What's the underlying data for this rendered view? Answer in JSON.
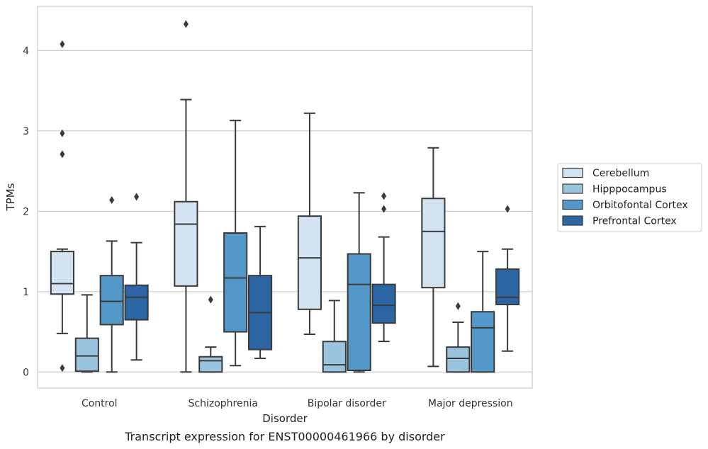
{
  "chart_data": {
    "type": "box",
    "xlabel": "Disorder",
    "ylabel": "TPMs",
    "caption": "Transcript expression for ENST00000461966 by disorder",
    "ylim": [
      -0.2,
      4.55
    ],
    "yticks": [
      0,
      1,
      2,
      3,
      4
    ],
    "grid": "horizontal",
    "legend_position": "right",
    "categories": [
      "Control",
      "Schizophrenia",
      "Bipolar disorder",
      "Major depression"
    ],
    "series": [
      {
        "name": "Cerebellum",
        "color": "#d3e3f2",
        "boxes": [
          {
            "whisker_low": 0.48,
            "q1": 0.97,
            "median": 1.1,
            "q3": 1.5,
            "whisker_high": 1.53,
            "outliers": [
              0.05,
              2.71,
              2.97,
              4.08
            ]
          },
          {
            "whisker_low": 0.0,
            "q1": 1.07,
            "median": 1.84,
            "q3": 2.12,
            "whisker_high": 3.39,
            "outliers": [
              4.33
            ]
          },
          {
            "whisker_low": 0.47,
            "q1": 0.78,
            "median": 1.42,
            "q3": 1.94,
            "whisker_high": 3.22,
            "outliers": []
          },
          {
            "whisker_low": 0.07,
            "q1": 1.05,
            "median": 1.75,
            "q3": 2.16,
            "whisker_high": 2.79,
            "outliers": []
          }
        ]
      },
      {
        "name": "Hipppocampus",
        "color": "#9ac3de",
        "boxes": [
          {
            "whisker_low": 0.0,
            "q1": 0.01,
            "median": 0.2,
            "q3": 0.42,
            "whisker_high": 0.96,
            "outliers": []
          },
          {
            "whisker_low": 0.0,
            "q1": 0.0,
            "median": 0.14,
            "q3": 0.19,
            "whisker_high": 0.31,
            "outliers": [
              0.9
            ]
          },
          {
            "whisker_low": 0.0,
            "q1": 0.0,
            "median": 0.09,
            "q3": 0.38,
            "whisker_high": 0.89,
            "outliers": []
          },
          {
            "whisker_low": 0.0,
            "q1": 0.0,
            "median": 0.17,
            "q3": 0.31,
            "whisker_high": 0.62,
            "outliers": [
              0.82
            ]
          }
        ]
      },
      {
        "name": "Orbitofontal Cortex",
        "color": "#5498c9",
        "boxes": [
          {
            "whisker_low": 0.0,
            "q1": 0.59,
            "median": 0.88,
            "q3": 1.2,
            "whisker_high": 1.63,
            "outliers": [
              2.14
            ]
          },
          {
            "whisker_low": 0.08,
            "q1": 0.5,
            "median": 1.17,
            "q3": 1.73,
            "whisker_high": 3.13,
            "outliers": []
          },
          {
            "whisker_low": 0.0,
            "q1": 0.02,
            "median": 1.09,
            "q3": 1.47,
            "whisker_high": 2.23,
            "outliers": []
          },
          {
            "whisker_low": 0.0,
            "q1": 0.0,
            "median": 0.55,
            "q3": 0.75,
            "whisker_high": 1.5,
            "outliers": []
          }
        ]
      },
      {
        "name": "Prefrontal Cortex",
        "color": "#2b65a4",
        "boxes": [
          {
            "whisker_low": 0.15,
            "q1": 0.65,
            "median": 0.93,
            "q3": 1.08,
            "whisker_high": 1.61,
            "outliers": [
              2.18
            ]
          },
          {
            "whisker_low": 0.17,
            "q1": 0.28,
            "median": 0.74,
            "q3": 1.2,
            "whisker_high": 1.81,
            "outliers": []
          },
          {
            "whisker_low": 0.38,
            "q1": 0.61,
            "median": 0.83,
            "q3": 1.09,
            "whisker_high": 1.68,
            "outliers": [
              2.03,
              2.19
            ]
          },
          {
            "whisker_low": 0.26,
            "q1": 0.84,
            "median": 0.93,
            "q3": 1.28,
            "whisker_high": 1.53,
            "outliers": [
              2.03
            ]
          }
        ]
      }
    ]
  }
}
